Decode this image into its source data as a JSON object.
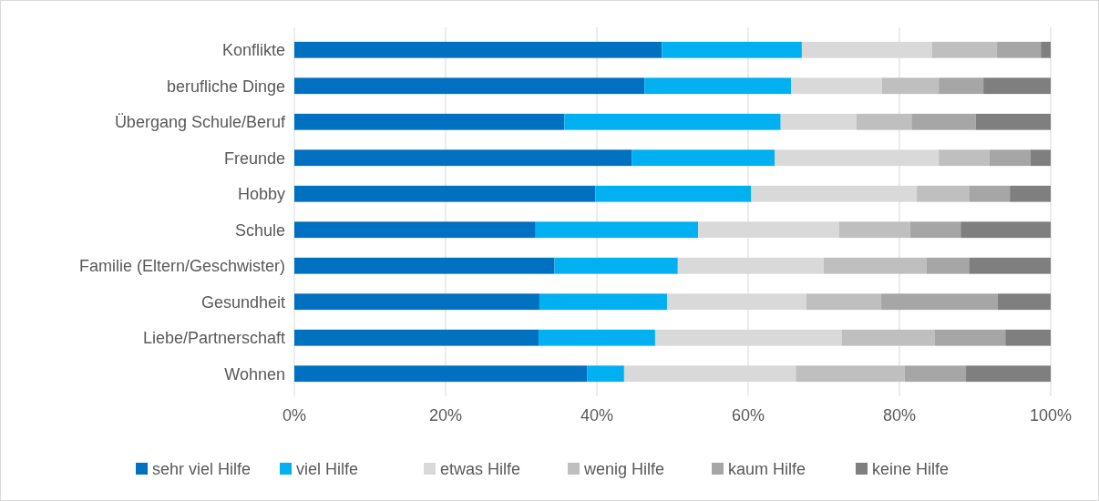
{
  "chart_data": {
    "type": "bar",
    "orientation": "horizontal",
    "stacked": true,
    "categories": [
      "Konflikte",
      "berufliche Dinge",
      "Übergang Schule/Beruf",
      "Freunde",
      "Hobby",
      "Schule",
      "Familie (Eltern/Geschwister)",
      "Gesundheit",
      "Liebe/Partnerschaft",
      "Wohnen"
    ],
    "series": [
      {
        "name": "sehr viel Hilfe",
        "color": "#0070c0",
        "values": [
          48.6,
          46.3,
          35.7,
          44.6,
          39.8,
          31.9,
          34.4,
          32.4,
          32.3,
          38.7
        ]
      },
      {
        "name": "viel Hilfe",
        "color": "#00b0f0",
        "values": [
          18.5,
          19.4,
          28.6,
          18.9,
          20.6,
          21.5,
          16.3,
          16.9,
          15.4,
          4.9
        ]
      },
      {
        "name": "etwas Hilfe",
        "color": "#d9d9d9",
        "values": [
          17.2,
          12.0,
          10.0,
          21.7,
          21.9,
          18.6,
          19.3,
          18.4,
          24.7,
          22.7
        ]
      },
      {
        "name": "wenig Hilfe",
        "color": "#bfbfbf",
        "values": [
          8.6,
          7.5,
          7.3,
          6.7,
          6.9,
          9.4,
          13.6,
          9.9,
          12.3,
          14.4
        ]
      },
      {
        "name": "kaum Hilfe",
        "color": "#a6a6a6",
        "values": [
          5.8,
          5.9,
          8.5,
          5.4,
          5.4,
          6.7,
          5.6,
          15.4,
          9.3,
          8.1
        ]
      },
      {
        "name": "keine Hilfe",
        "color": "#7f7f7f",
        "values": [
          1.3,
          8.9,
          9.9,
          2.7,
          5.4,
          11.9,
          10.8,
          7.0,
          6.0,
          11.2
        ]
      }
    ],
    "xlim": [
      0,
      100
    ],
    "xticks": [
      {
        "value": 0,
        "label": "0%"
      },
      {
        "value": 20,
        "label": "20%"
      },
      {
        "value": 40,
        "label": "40%"
      },
      {
        "value": 60,
        "label": "60%"
      },
      {
        "value": 80,
        "label": "80%"
      },
      {
        "value": 100,
        "label": "100%"
      }
    ],
    "grid": "x",
    "legend": "bottom"
  }
}
